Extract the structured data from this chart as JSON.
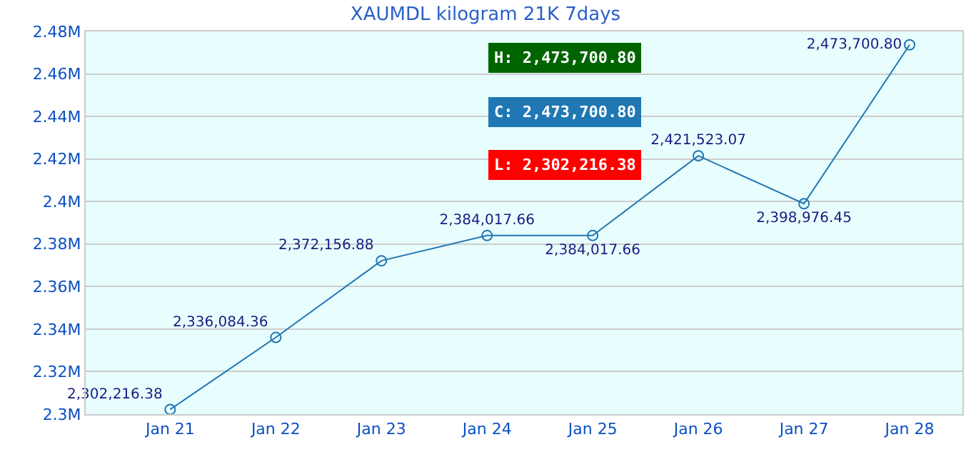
{
  "chart_data": {
    "type": "line",
    "title": "XAUMDL kilogram 21K 7days",
    "categories": [
      "Jan 21",
      "Jan 22",
      "Jan 23",
      "Jan 24",
      "Jan 25",
      "Jan 26",
      "Jan 27",
      "Jan 28"
    ],
    "series": [
      {
        "color": "#1f77b4",
        "values": [
          2302216.38,
          2336084.36,
          2372156.88,
          2384017.66,
          2384017.66,
          2421523.07,
          2398976.45,
          2473700.8
        ],
        "value_labels": [
          "2,302,216.38",
          "2,336,084.36",
          "2,372,156.88",
          "2,384,017.66",
          "2,384,017.66",
          "2,421,523.07",
          "2,398,976.45",
          "2,473,700.80"
        ]
      }
    ],
    "ylim": [
      2300000,
      2480000
    ],
    "yticks": [
      {
        "value": 2300000,
        "label": "2.3M"
      },
      {
        "value": 2320000,
        "label": "2.32M"
      },
      {
        "value": 2340000,
        "label": "2.34M"
      },
      {
        "value": 2360000,
        "label": "2.36M"
      },
      {
        "value": 2380000,
        "label": "2.38M"
      },
      {
        "value": 2400000,
        "label": "2.4M"
      },
      {
        "value": 2420000,
        "label": "2.42M"
      },
      {
        "value": 2440000,
        "label": "2.44M"
      },
      {
        "value": 2460000,
        "label": "2.46M"
      },
      {
        "value": 2480000,
        "label": "2.48M"
      }
    ],
    "grid": "y",
    "marker": "circle",
    "line_style": "solid",
    "annotations": [
      "H: 2,473,700.80",
      "C: 2,473,700.80",
      "L: 2,302,216.38"
    ]
  }
}
